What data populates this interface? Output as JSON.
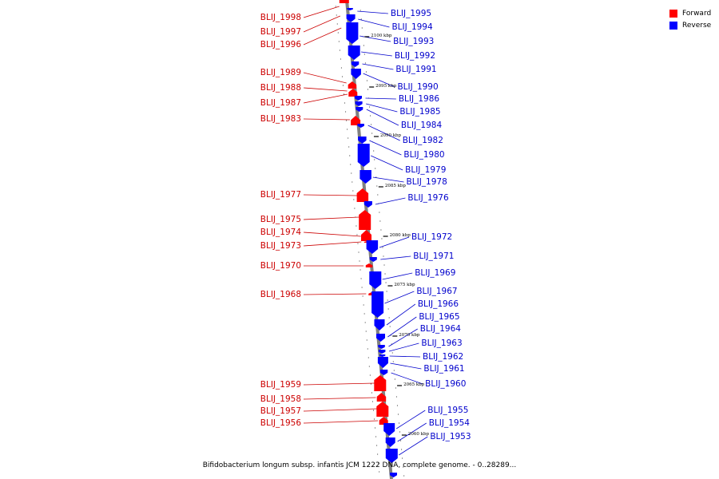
{
  "caption": "Bifidobacterium longum subsp. infantis JCM 1222 DNA, complete genome. - 0..28289...",
  "legend": [
    {
      "label": "Forward",
      "color": "#ff0000"
    },
    {
      "label": "Reverse",
      "color": "#0000ff"
    }
  ],
  "colors": {
    "forward": "#ff0000",
    "reverse": "#0000ff",
    "forward_label": "#cc0000",
    "reverse_label": "#0000cc",
    "backbone": "#808080"
  },
  "kbp_markers": [
    "2100 kbp",
    "2095 kbp",
    "2090 kbp",
    "2085 kbp",
    "2080 kbp",
    "2075 kbp",
    "2070 kbp",
    "2065 kbp",
    "2060 kbp"
  ],
  "forward_genes": [
    "BLIJ_1998",
    "BLIJ_1997",
    "BLIJ_1996",
    "BLIJ_1989",
    "BLIJ_1988",
    "BLIJ_1987",
    "BLIJ_1983",
    "BLIJ_1977",
    "BLIJ_1975",
    "BLIJ_1974",
    "BLIJ_1973",
    "BLIJ_1970",
    "BLIJ_1968",
    "BLIJ_1959",
    "BLIJ_1958",
    "BLIJ_1957",
    "BLIJ_1956"
  ],
  "reverse_genes": [
    "BLIJ_1995",
    "BLIJ_1994",
    "BLIJ_1993",
    "BLIJ_1992",
    "BLIJ_1991",
    "BLIJ_1990",
    "BLIJ_1986",
    "BLIJ_1985",
    "BLIJ_1984",
    "BLIJ_1982",
    "BLIJ_1980",
    "BLIJ_1979",
    "BLIJ_1978",
    "BLIJ_1976",
    "BLIJ_1972",
    "BLIJ_1971",
    "BLIJ_1969",
    "BLIJ_1967",
    "BLIJ_1966",
    "BLIJ_1965",
    "BLIJ_1964",
    "BLIJ_1963",
    "BLIJ_1962",
    "BLIJ_1961",
    "BLIJ_1960",
    "BLIJ_1955",
    "BLIJ_1954",
    "BLIJ_1953"
  ]
}
